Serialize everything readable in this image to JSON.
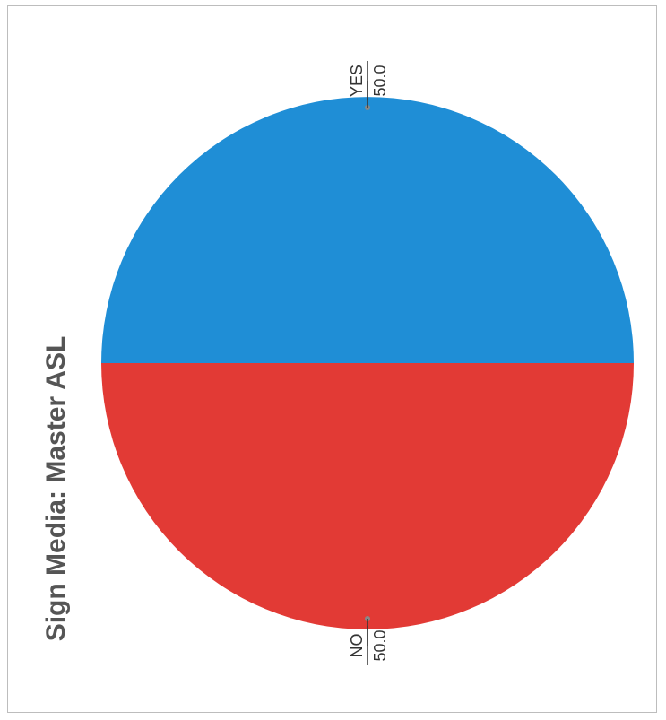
{
  "chart_data": {
    "type": "pie",
    "title": "Sign Media: Master ASL",
    "slices": [
      {
        "label": "YES",
        "value": 50.0,
        "value_label": "50.0",
        "color": "#1f8ed6"
      },
      {
        "label": "NO",
        "value": 50.0,
        "value_label": "50.0",
        "color": "#e23a35"
      }
    ],
    "orientation": "rotated-90-ccw"
  }
}
